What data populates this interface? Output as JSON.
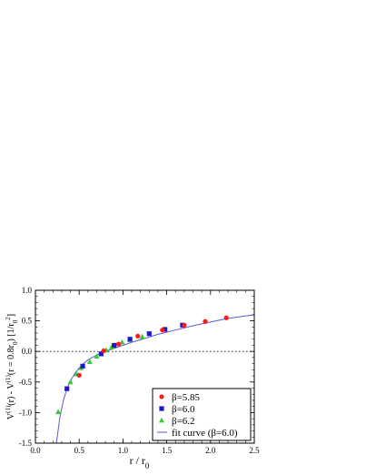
{
  "chart_data": {
    "type": "scatter",
    "xlabel": {
      "main": "r / r",
      "sub": "0"
    },
    "ylabel": {
      "parts": [
        {
          "t": "V",
          "s": "n"
        },
        {
          "t": "(1)",
          "s": "sup"
        },
        {
          "t": "(r) - V",
          "s": "n"
        },
        {
          "t": "(1)",
          "s": "sup"
        },
        {
          "t": "(r = 0.8r",
          "s": "n"
        },
        {
          "t": "0",
          "s": "sub"
        },
        {
          "t": ") [1/r",
          "s": "n"
        },
        {
          "t": "0",
          "s": "sub"
        },
        {
          "t": "2",
          "s": "sup"
        },
        {
          "t": "]",
          "s": "n"
        }
      ]
    },
    "xlim": [
      0.0,
      2.5
    ],
    "ylim": [
      -1.5,
      1.0
    ],
    "xticks": [
      {
        "v": 0.0,
        "label": "0.0"
      },
      {
        "v": 0.5,
        "label": "0.5"
      },
      {
        "v": 1.0,
        "label": "1.0"
      },
      {
        "v": 1.5,
        "label": "1.5"
      },
      {
        "v": 2.0,
        "label": "2.0"
      },
      {
        "v": 2.5,
        "label": "2.5"
      }
    ],
    "yticks": [
      {
        "v": -1.5,
        "label": "-1.5"
      },
      {
        "v": -1.0,
        "label": "-1.0"
      },
      {
        "v": -0.5,
        "label": "-0.5"
      },
      {
        "v": 0.0,
        "label": "0.0"
      },
      {
        "v": 0.5,
        "label": "0.5"
      },
      {
        "v": 1.0,
        "label": "1.0"
      }
    ],
    "x_minor_step": 0.1,
    "y_minor_step": 0.1,
    "zero_line": "dotted",
    "grid": false,
    "legend_position": "bottom-right",
    "series": [
      {
        "name": "β=5.85",
        "marker": "circle",
        "color": "#ff1a1a",
        "x": [
          0.5,
          0.78,
          0.95,
          1.17,
          1.45,
          1.7,
          1.94,
          2.18
        ],
        "y": [
          -0.39,
          0.01,
          0.12,
          0.25,
          0.35,
          0.43,
          0.49,
          0.55
        ]
      },
      {
        "name": "β=6.0",
        "marker": "square",
        "color": "#1a1acc",
        "x": [
          0.36,
          0.54,
          0.75,
          0.9,
          1.08,
          1.3,
          1.48,
          1.68
        ],
        "y": [
          -0.61,
          -0.24,
          -0.04,
          0.1,
          0.2,
          0.29,
          0.36,
          0.43
        ]
      },
      {
        "name": "β=6.2",
        "marker": "triangle",
        "color": "#33cc33",
        "x": [
          0.26,
          0.4,
          0.47,
          0.52,
          0.62,
          0.7,
          0.81,
          0.87,
          0.99,
          1.08,
          1.22
        ],
        "y": [
          -0.99,
          -0.5,
          -0.37,
          -0.27,
          -0.17,
          -0.08,
          0.02,
          0.07,
          0.15,
          0.19,
          0.24
        ]
      }
    ],
    "fit_curve": {
      "name": "fit curve (β=6.0)",
      "color": "#5a5ad0",
      "x": [
        0.24,
        0.28,
        0.32,
        0.36,
        0.4,
        0.45,
        0.5,
        0.55,
        0.6,
        0.7,
        0.8,
        0.9,
        1.0,
        1.1,
        1.2,
        1.4,
        1.6,
        1.8,
        2.0,
        2.2,
        2.5
      ],
      "y": [
        -1.5,
        -1.07,
        -0.8,
        -0.61,
        -0.48,
        -0.36,
        -0.27,
        -0.2,
        -0.14,
        -0.06,
        0.0,
        0.05,
        0.1,
        0.15,
        0.19,
        0.28,
        0.35,
        0.42,
        0.48,
        0.54,
        0.6
      ]
    }
  }
}
